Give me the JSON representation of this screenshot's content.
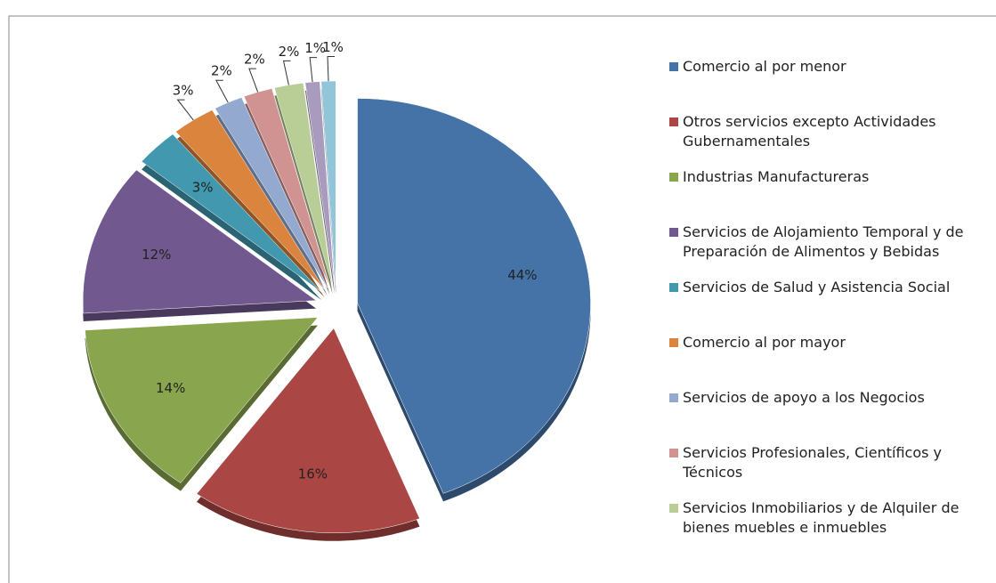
{
  "chart_data": {
    "type": "pie",
    "categories": [
      "Comercio al por menor",
      "Otros servicios excepto Actividades Gubernamentales",
      "Industrias Manufactureras",
      "Servicios de Alojamiento Temporal y de Preparación de Alimentos y Bebidas",
      "Servicios de Salud y Asistencia Social",
      "Comercio al por mayor",
      "Servicios de apoyo a los Negocios",
      "Servicios Profesionales, Científicos y Técnicos",
      "Servicios Inmobiliarios y de Alquiler de bienes muebles e inmuebles",
      null,
      null
    ],
    "values": [
      44,
      16,
      14,
      12,
      3,
      3,
      2,
      2,
      2,
      1,
      1
    ],
    "value_labels": [
      "44%",
      "16%",
      "14%",
      "12%",
      "3%",
      "3%",
      "2%",
      "2%",
      "2%",
      "1%",
      "1%"
    ],
    "colors": [
      "#4572a7",
      "#aa4643",
      "#89a54e",
      "#71588f",
      "#4198af",
      "#db843d",
      "#93a9cf",
      "#d19392",
      "#b9cd96",
      "#a99bbd",
      "#92c5d9"
    ]
  }
}
